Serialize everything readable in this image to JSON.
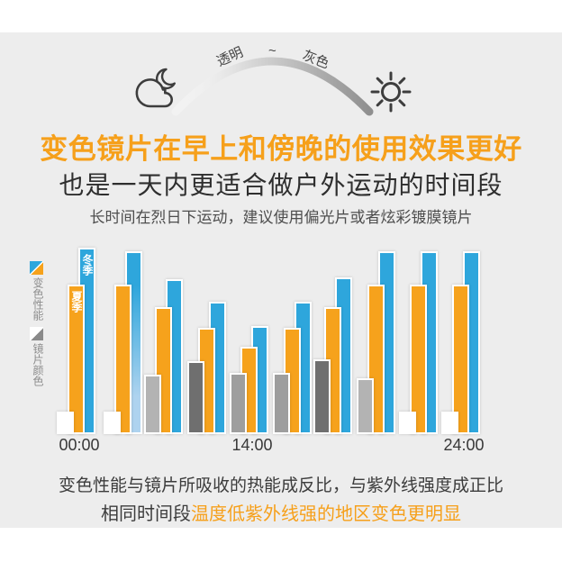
{
  "page": {
    "background": "#ffffff",
    "panel_background": "#ededed"
  },
  "header": {
    "night_icon": "moon-cloud-icon",
    "day_icon": "sun-icon",
    "arc_labels": {
      "left": "透明",
      "middle": "~",
      "right": "灰色"
    },
    "arc_gradient": [
      "#ffffff",
      "#8f8f8f"
    ]
  },
  "titles": {
    "headline": "变色镜片在早上和傍晚的使用效果更好",
    "headline_color": "#f6a01b",
    "subheadline": "也是一天内更适合做户外运动的时间段",
    "note": "长时间在烈日下运动，建议使用偏光片或者炫彩镀膜镜片"
  },
  "legend": [
    {
      "label": "变色性能",
      "icon": "diagonal-split-square",
      "colors": [
        "#2ea6dc",
        "#f6a21c"
      ]
    },
    {
      "label": "镜片颜色",
      "icon": "diagonal-split-square",
      "colors": [
        "#ffffff",
        "#8a8a8a"
      ]
    }
  ],
  "chart_data": {
    "type": "bar",
    "title": "",
    "xlabel": "",
    "ylabel": "",
    "unit": "relative height (no y-axis shown), 0-100",
    "x_ticks": [
      {
        "group": 0,
        "label": "00:00"
      },
      {
        "group": 4,
        "label": "14:00"
      },
      {
        "group": 9,
        "label": "24:00"
      }
    ],
    "series": [
      {
        "id": "winter",
        "name": "冬季（变色性能）",
        "color": "#2ea6dc",
        "values": [
          100,
          98,
          83,
          71,
          58,
          71,
          84,
          98,
          98,
          98
        ],
        "gradient_groups": [
          1
        ],
        "gradient_bottom_color": "#aed3ef"
      },
      {
        "id": "summer",
        "name": "夏季（变色性能）",
        "color": "#f6a21c",
        "values": [
          80,
          80,
          68,
          57,
          47,
          57,
          68,
          80,
          80,
          80
        ]
      },
      {
        "id": "lens",
        "name": "镜片颜色",
        "values": [
          12,
          12,
          32,
          39,
          33,
          33,
          40,
          30,
          12,
          12
        ],
        "colors": [
          "#ffffff",
          "#ffffff",
          "#b3b3b3",
          "#6f6f6f",
          "#9e9e9e",
          "#9e9e9e",
          "#6f6f6f",
          "#b3b3b3",
          "#ffffff",
          "#ffffff"
        ]
      }
    ],
    "bar_labels": [
      {
        "series": "winter",
        "group": 0,
        "text": "冬季"
      },
      {
        "series": "summer",
        "group": 0,
        "text": "夏季"
      }
    ],
    "legend_position": "left"
  },
  "footer": {
    "line1": "变色性能与镜片所吸收的热能成反比，与紫外线强度成正比",
    "line2_dark": "相同时间段",
    "line2_orange": "温度低紫外线强的地区变色更明显",
    "orange_color": "#f6a01b"
  }
}
